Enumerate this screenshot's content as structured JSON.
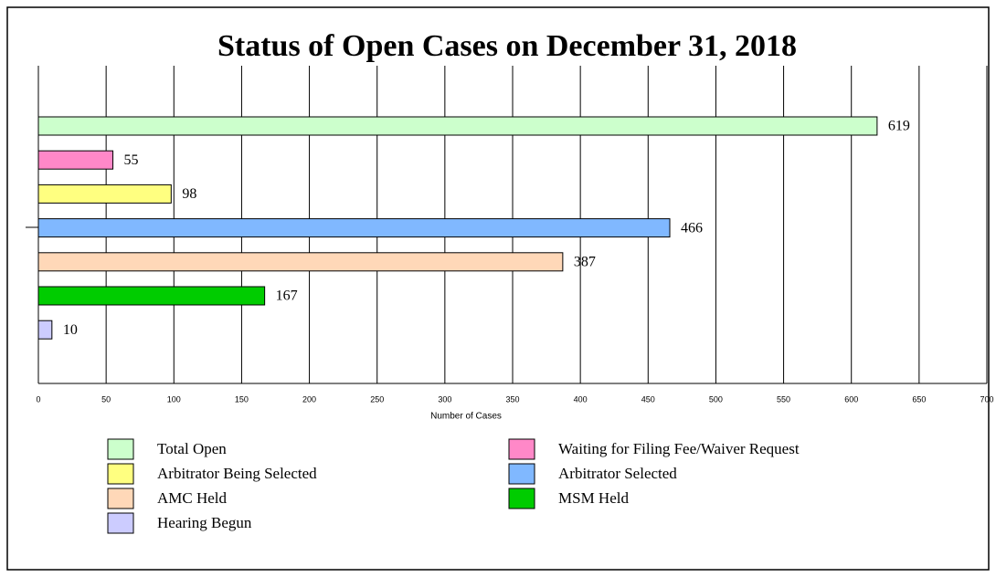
{
  "chart_data": {
    "type": "bar",
    "orientation": "horizontal",
    "title": "Status of Open Cases on December 31, 2018",
    "x_label": "Number of Cases",
    "series": [
      {
        "name": "Total Open",
        "color": "#ccffcc",
        "values": [
          619
        ]
      },
      {
        "name": "Waiting for Filing Fee/Waiver Request",
        "color": "#ff88c8",
        "values": [
          55
        ]
      },
      {
        "name": "Arbitrator Being Selected",
        "color": "#ffff80",
        "values": [
          98
        ]
      },
      {
        "name": "Arbitrator Selected",
        "color": "#80b8ff",
        "values": [
          466
        ]
      },
      {
        "name": "AMC Held",
        "color": "#ffd8b8",
        "values": [
          387
        ]
      },
      {
        "name": "MSM Held",
        "color": "#00cc00",
        "values": [
          167
        ]
      },
      {
        "name": "Hearing Begun",
        "color": "#ccccff",
        "values": [
          10
        ]
      }
    ],
    "xlim": [
      0,
      700
    ],
    "xticks": [
      0,
      50,
      100,
      150,
      200,
      250,
      300,
      350,
      400,
      450,
      500,
      550,
      600,
      650,
      700
    ],
    "grid": true
  }
}
